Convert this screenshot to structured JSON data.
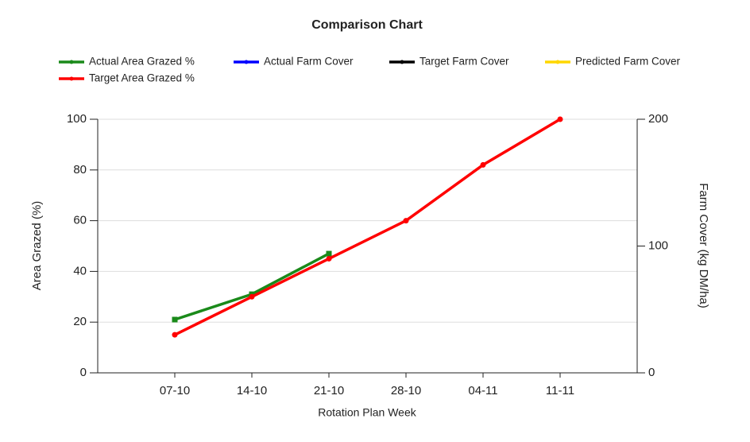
{
  "chart_data": {
    "type": "line",
    "title": "Comparison Chart",
    "x_label": "Rotation Plan Week",
    "y_label": "Area Grazed (%)",
    "y2_label": "Farm Cover (kg DM/ha)",
    "categories": [
      "07-10",
      "14-10",
      "21-10",
      "28-10",
      "04-11",
      "11-11"
    ],
    "series": [
      {
        "name": "Actual Area Grazed %",
        "color": "#1a8a1a",
        "marker": "square",
        "values": [
          21,
          31,
          47,
          null,
          null,
          null
        ]
      },
      {
        "name": "Actual Farm Cover",
        "color": "#0000ff",
        "axis": "y2",
        "values": [
          null,
          null,
          null,
          null,
          null,
          null
        ]
      },
      {
        "name": "Target Farm Cover",
        "color": "#000000",
        "axis": "y2",
        "values": [
          null,
          null,
          null,
          null,
          null,
          null
        ]
      },
      {
        "name": "Predicted Farm Cover",
        "color": "#ffd700",
        "axis": "y2",
        "values": [
          null,
          null,
          null,
          null,
          null,
          null
        ]
      },
      {
        "name": "Target Area Grazed %",
        "color": "#ff0000",
        "marker": "circle",
        "values": [
          15,
          30,
          45,
          60,
          82,
          100
        ]
      }
    ],
    "ylim": [
      0,
      100
    ],
    "yticks": [
      0,
      20,
      40,
      60,
      80,
      100
    ],
    "y2lim": [
      0,
      200
    ],
    "y2ticks": [
      0,
      100,
      200
    ],
    "grid": true,
    "legend": "top"
  }
}
